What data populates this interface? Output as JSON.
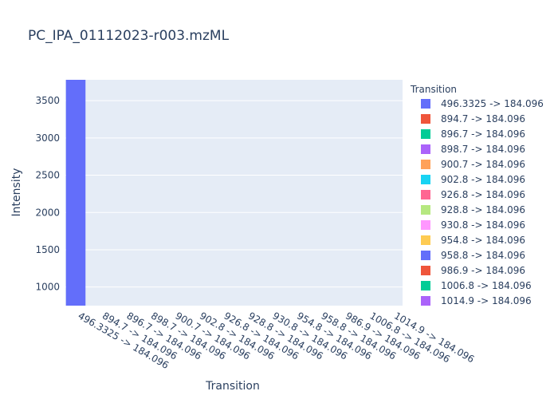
{
  "chart_data": {
    "type": "bar",
    "title": "PC_IPA_01112023-r003.mzML",
    "xlabel": "Transition",
    "ylabel": "Intensity",
    "ylim": [
      750,
      3780
    ],
    "yticks": [
      1000,
      1500,
      2000,
      2500,
      3000,
      3500
    ],
    "ytick_labels": [
      "1000",
      "1500",
      "2000",
      "2500",
      "3000",
      "3500"
    ],
    "grid": true,
    "legend_position": "right",
    "legend_title": "Transition",
    "categories": [
      "496.3325 -> 184.096",
      "894.7 -> 184.096",
      "896.7 -> 184.096",
      "898.7 -> 184.096",
      "900.7 -> 184.096",
      "902.8 -> 184.096",
      "926.8 -> 184.096",
      "928.8 -> 184.096",
      "930.8 -> 184.096",
      "954.8 -> 184.096",
      "958.8 -> 184.096",
      "986.9 -> 184.096",
      "1006.8 -> 184.096",
      "1014.9 -> 184.096"
    ],
    "values": [
      3780,
      0,
      0,
      0,
      0,
      0,
      0,
      0,
      0,
      0,
      0,
      0,
      0,
      0
    ],
    "colors": [
      "#636efa",
      "#EF553B",
      "#00cc96",
      "#ab63fa",
      "#FFA15A",
      "#19d3f3",
      "#FF6692",
      "#B6E880",
      "#FF97FF",
      "#FECB52",
      "#636efa",
      "#EF553B",
      "#00cc96",
      "#ab63fa"
    ]
  }
}
